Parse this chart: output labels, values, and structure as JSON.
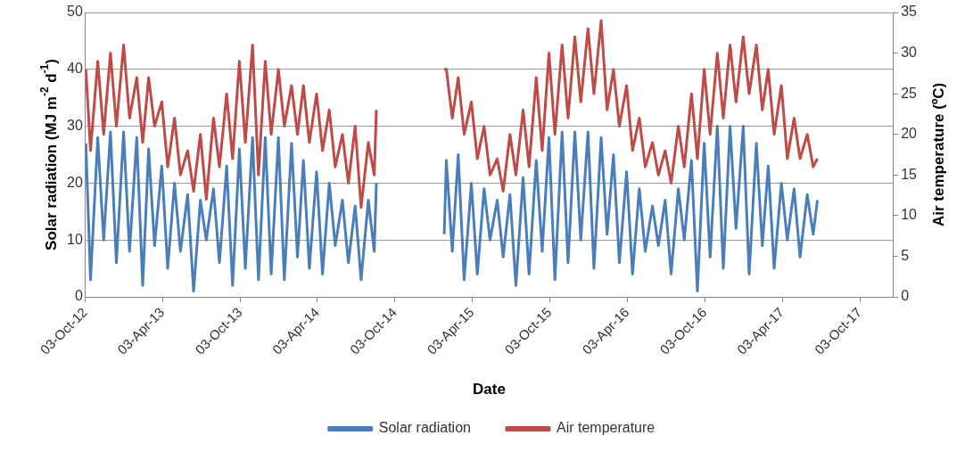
{
  "chart_data": {
    "type": "line",
    "xlabel": "Date",
    "ylabel": "Solar radiation (MJ m$^{-2}$ d$^{-1}$)",
    "y2label": "Air temperature (ºC)",
    "x": [
      "2012-10-04",
      "2012-10-15",
      "2012-11-01",
      "2012-11-15",
      "2012-12-01",
      "2012-12-15",
      "2013-01-01",
      "2013-01-15",
      "2013-02-01",
      "2013-02-15",
      "2013-03-01",
      "2013-03-15",
      "2013-04-01",
      "2013-04-15",
      "2013-05-01",
      "2013-05-15",
      "2013-06-01",
      "2013-06-15",
      "2013-07-01",
      "2013-07-15",
      "2013-08-01",
      "2013-08-15",
      "2013-09-01",
      "2013-09-15",
      "2013-10-01",
      "2013-10-15",
      "2013-11-01",
      "2013-11-15",
      "2013-12-01",
      "2013-12-15",
      "2014-01-01",
      "2014-01-15",
      "2014-02-01",
      "2014-02-15",
      "2014-03-01",
      "2014-03-15",
      "2014-04-01",
      "2014-04-15",
      "2014-05-01",
      "2014-05-15",
      "2014-06-01",
      "2014-06-15",
      "2014-07-01",
      "2014-07-15",
      "2014-08-01",
      "2014-08-15",
      "2014-08-20",
      "2014-11-01",
      "2015-01-27",
      "2015-02-01",
      "2015-02-15",
      "2015-03-01",
      "2015-03-15",
      "2015-04-01",
      "2015-04-15",
      "2015-05-01",
      "2015-05-15",
      "2015-06-01",
      "2015-06-15",
      "2015-07-01",
      "2015-07-15",
      "2015-08-01",
      "2015-08-15",
      "2015-09-01",
      "2015-09-15",
      "2015-10-01",
      "2015-10-15",
      "2015-11-01",
      "2015-11-15",
      "2015-12-01",
      "2015-12-15",
      "2016-01-01",
      "2016-01-15",
      "2016-02-01",
      "2016-02-15",
      "2016-03-01",
      "2016-03-15",
      "2016-04-01",
      "2016-04-15",
      "2016-05-01",
      "2016-05-15",
      "2016-06-01",
      "2016-06-15",
      "2016-07-01",
      "2016-07-15",
      "2016-08-01",
      "2016-08-15",
      "2016-09-01",
      "2016-09-15",
      "2016-10-01",
      "2016-10-15",
      "2016-11-01",
      "2016-11-15",
      "2016-12-01",
      "2016-12-15",
      "2017-01-01",
      "2017-01-15",
      "2017-02-01",
      "2017-02-15",
      "2017-03-01",
      "2017-03-15",
      "2017-04-01",
      "2017-04-15",
      "2017-05-01",
      "2017-05-15",
      "2017-06-01",
      "2017-06-15",
      "2017-06-25"
    ],
    "series": [
      {
        "name": "Solar radiation",
        "color": "#4a7ebb",
        "values": [
          27,
          3,
          28,
          10,
          29,
          6,
          29,
          8,
          28,
          2,
          26,
          9,
          23,
          5,
          20,
          8,
          18,
          1,
          17,
          10,
          19,
          6,
          23,
          2,
          26,
          5,
          28,
          3,
          28,
          4,
          28,
          3,
          27,
          7,
          24,
          5,
          22,
          4,
          20,
          9,
          17,
          6,
          16,
          3,
          17,
          8,
          20,
          null,
          11,
          24,
          8,
          25,
          3,
          20,
          4,
          19,
          10,
          17,
          7,
          18,
          2,
          21,
          4,
          24,
          8,
          28,
          3,
          29,
          6,
          29,
          10,
          29,
          5,
          28,
          11,
          25,
          6,
          22,
          4,
          19,
          8,
          16,
          9,
          17,
          4,
          19,
          10,
          24,
          1,
          27,
          7,
          30,
          5,
          30,
          12,
          30,
          4,
          27,
          9,
          23,
          5,
          20,
          10,
          19,
          7,
          18,
          11,
          17
        ]
      },
      {
        "name": "Air temperature",
        "color": "#be4b48",
        "axis": "y2",
        "values": [
          28,
          18,
          29,
          20,
          30,
          21,
          31,
          22,
          27,
          19,
          27,
          21,
          24,
          16,
          22,
          15,
          18,
          13,
          20,
          12,
          22,
          16,
          25,
          17,
          29,
          19,
          31,
          15,
          29,
          20,
          28,
          21,
          26,
          20,
          26,
          19,
          25,
          18,
          23,
          16,
          20,
          14,
          21,
          11,
          19,
          15,
          23,
          null,
          28,
          28,
          22,
          27,
          20,
          24,
          17,
          21,
          15,
          17,
          13,
          20,
          15,
          23,
          16,
          27,
          18,
          30,
          20,
          31,
          22,
          32,
          24,
          33,
          25,
          34,
          23,
          28,
          21,
          26,
          18,
          22,
          16,
          19,
          15,
          18,
          14,
          21,
          16,
          25,
          17,
          28,
          20,
          30,
          22,
          31,
          24,
          32,
          25,
          31,
          23,
          28,
          20,
          26,
          17,
          22,
          17,
          20,
          16,
          17
        ]
      }
    ],
    "xlim": [
      "2012-10-03",
      "2017-12-20"
    ],
    "xticks": [
      {
        "value": "2012-10-03",
        "label": "03-Oct-12"
      },
      {
        "value": "2013-04-03",
        "label": "03-Apr-13"
      },
      {
        "value": "2013-10-03",
        "label": "03-Oct-13"
      },
      {
        "value": "2014-04-03",
        "label": "03-Apr-14"
      },
      {
        "value": "2014-10-03",
        "label": "03-Oct-14"
      },
      {
        "value": "2015-04-03",
        "label": "03-Apr-15"
      },
      {
        "value": "2015-10-03",
        "label": "03-Oct-15"
      },
      {
        "value": "2016-04-03",
        "label": "03-Apr-16"
      },
      {
        "value": "2016-10-03",
        "label": "03-Oct-16"
      },
      {
        "value": "2017-04-03",
        "label": "03-Apr-17"
      },
      {
        "value": "2017-10-03",
        "label": "03-Oct-17"
      }
    ],
    "ylim": [
      0,
      50
    ],
    "yticks": [
      0,
      10,
      20,
      30,
      40,
      50
    ],
    "y2lim": [
      0,
      35
    ],
    "y2ticks": [
      0,
      5,
      10,
      15,
      20,
      25,
      30,
      35
    ],
    "grid": "y",
    "legend": "bottom",
    "marker": "none",
    "line_style": "solid"
  }
}
